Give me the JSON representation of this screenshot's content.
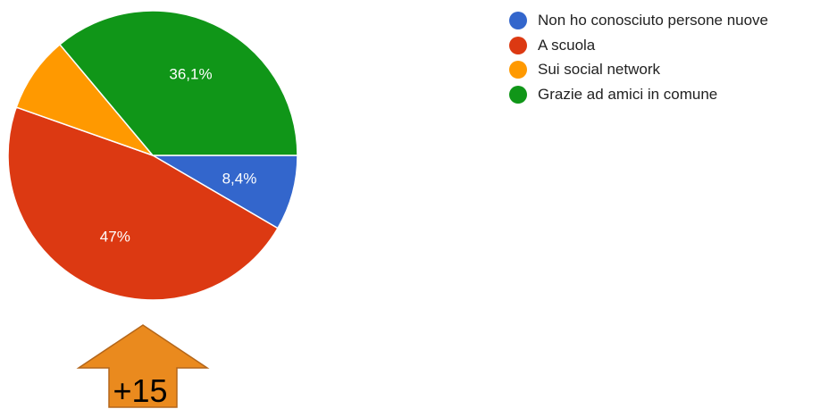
{
  "chart_data": {
    "type": "pie",
    "title": "",
    "slices": [
      {
        "label": "Non ho conosciuto persone nuove",
        "value": 8.4,
        "display": "8,4%",
        "color": "#3366cc"
      },
      {
        "label": "A scuola",
        "value": 47,
        "display": "47%",
        "color": "#dc3912"
      },
      {
        "label": "Sui social network",
        "value": 8.5,
        "display": "",
        "color": "#ff9900"
      },
      {
        "label": "Grazie ad amici in comune",
        "value": 36.1,
        "display": "36,1%",
        "color": "#109618"
      }
    ],
    "start_angle": "3 o'clock",
    "direction": "clockwise",
    "legend_position": "top-right"
  },
  "annotation": {
    "arrow_direction": "up",
    "arrow_color": "#ea8a1e",
    "arrow_border_color": "#b4661a",
    "text": "+15"
  }
}
